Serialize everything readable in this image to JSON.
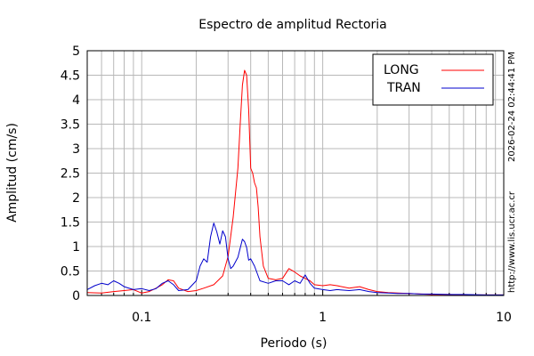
{
  "chart_data": {
    "type": "line",
    "title": "Espectro de amplitud Rectoria",
    "xlabel": "Periodo (s)",
    "ylabel": "Amplitud (cm/s)",
    "x_scale": "log",
    "xlim": [
      0.05,
      10
    ],
    "ylim": [
      0,
      5
    ],
    "x_ticks": [
      0.1,
      1,
      10
    ],
    "x_tick_labels": [
      "0.1",
      "1",
      "10"
    ],
    "y_ticks": [
      0,
      0.5,
      1,
      1.5,
      2,
      2.5,
      3,
      3.5,
      4,
      4.5,
      5
    ],
    "y_tick_labels": [
      "0",
      "0.5",
      "1",
      "1.5",
      "2",
      "2.5",
      "3",
      "3.5",
      "4",
      "4.5",
      "5"
    ],
    "grid": true,
    "legend_position": "top-right",
    "timestamp": "2026-02-24 02:44:41 PM",
    "url": "http://www.lis.ucr.ac.cr",
    "series": [
      {
        "name": "LONG",
        "color": "#ff0000",
        "x": [
          0.05,
          0.06,
          0.07,
          0.08,
          0.09,
          0.1,
          0.11,
          0.12,
          0.13,
          0.14,
          0.15,
          0.16,
          0.18,
          0.2,
          0.22,
          0.25,
          0.28,
          0.3,
          0.32,
          0.34,
          0.35,
          0.36,
          0.37,
          0.38,
          0.39,
          0.4,
          0.41,
          0.42,
          0.43,
          0.44,
          0.45,
          0.47,
          0.5,
          0.55,
          0.6,
          0.65,
          0.7,
          0.75,
          0.8,
          0.85,
          0.9,
          1.0,
          1.1,
          1.2,
          1.4,
          1.6,
          1.8,
          2.0,
          2.3,
          2.6,
          3.0,
          3.5,
          4.0,
          5.0,
          6.0,
          8.0,
          10.0
        ],
        "y": [
          0.06,
          0.05,
          0.08,
          0.1,
          0.12,
          0.05,
          0.08,
          0.15,
          0.22,
          0.32,
          0.3,
          0.15,
          0.08,
          0.1,
          0.15,
          0.22,
          0.4,
          0.8,
          1.6,
          2.6,
          3.5,
          4.3,
          4.6,
          4.5,
          3.8,
          2.6,
          2.5,
          2.3,
          2.2,
          1.8,
          1.2,
          0.6,
          0.35,
          0.32,
          0.35,
          0.55,
          0.48,
          0.4,
          0.35,
          0.3,
          0.22,
          0.2,
          0.22,
          0.2,
          0.15,
          0.18,
          0.12,
          0.08,
          0.06,
          0.05,
          0.04,
          0.03,
          0.02,
          0.02,
          0.01,
          0.01,
          0.01
        ]
      },
      {
        "name": "TRAN",
        "color": "#0000cc",
        "x": [
          0.05,
          0.055,
          0.06,
          0.065,
          0.07,
          0.075,
          0.08,
          0.09,
          0.1,
          0.11,
          0.12,
          0.13,
          0.14,
          0.15,
          0.16,
          0.18,
          0.2,
          0.21,
          0.22,
          0.23,
          0.24,
          0.25,
          0.26,
          0.27,
          0.28,
          0.29,
          0.3,
          0.31,
          0.32,
          0.34,
          0.36,
          0.37,
          0.38,
          0.39,
          0.4,
          0.42,
          0.45,
          0.5,
          0.55,
          0.6,
          0.65,
          0.7,
          0.75,
          0.8,
          0.85,
          0.9,
          1.0,
          1.1,
          1.2,
          1.4,
          1.6,
          1.8,
          2.0,
          2.3,
          2.6,
          3.0,
          3.5,
          4.0,
          5.0,
          6.0,
          8.0,
          10.0
        ],
        "y": [
          0.12,
          0.2,
          0.25,
          0.22,
          0.3,
          0.25,
          0.18,
          0.12,
          0.14,
          0.1,
          0.14,
          0.25,
          0.3,
          0.22,
          0.1,
          0.12,
          0.3,
          0.6,
          0.75,
          0.68,
          1.2,
          1.48,
          1.3,
          1.05,
          1.32,
          1.2,
          0.75,
          0.55,
          0.6,
          0.78,
          1.15,
          1.1,
          0.98,
          0.72,
          0.75,
          0.6,
          0.3,
          0.25,
          0.3,
          0.3,
          0.22,
          0.3,
          0.25,
          0.42,
          0.25,
          0.15,
          0.12,
          0.1,
          0.12,
          0.1,
          0.12,
          0.08,
          0.06,
          0.05,
          0.04,
          0.04,
          0.03,
          0.03,
          0.02,
          0.02,
          0.01,
          0.01
        ]
      }
    ]
  }
}
